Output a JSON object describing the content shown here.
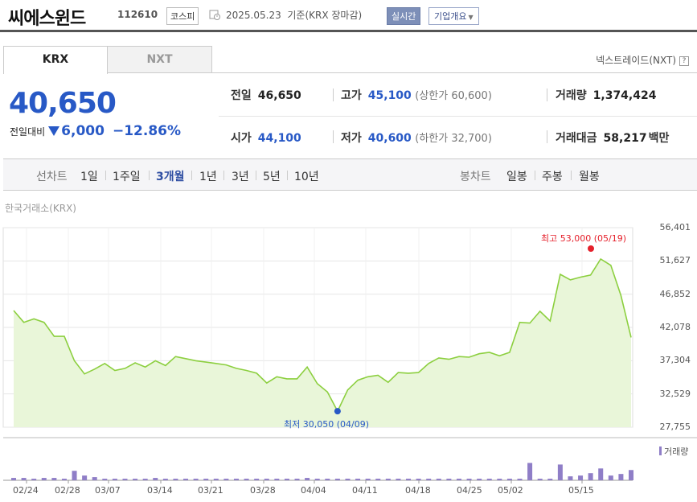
{
  "header": {
    "name": "씨에스윈드",
    "code": "112610",
    "market": "코스피",
    "date": "2025.05.23",
    "basis": "기준(KRX 장마감)",
    "realtime": "실시간",
    "corp_info": "기업개요"
  },
  "tabs": [
    {
      "label": "KRX"
    },
    {
      "label": "NXT"
    }
  ],
  "nxt_link": "넥스트레이드(NXT)",
  "nxt_help": "?",
  "price": {
    "current": "40,650",
    "change_label": "전일대비",
    "change": "6,000",
    "change_pct": "−12.86%"
  },
  "quotes": {
    "prev_close_label": "전일",
    "prev_close": "46,650",
    "high_label": "고가",
    "high": "45,100",
    "upper_limit": "(상한가 60,600)",
    "volume_label": "거래량",
    "volume": "1,374,424",
    "open_label": "시가",
    "open": "44,100",
    "low_label": "저가",
    "low": "40,600",
    "lower_limit": "(하한가 32,700)",
    "amount_label": "거래대금",
    "amount": "58,217",
    "amount_unit": "백만"
  },
  "period_bar": {
    "line_label": "선차트",
    "periods": [
      "1일",
      "1주일",
      "3개월",
      "1년",
      "3년",
      "5년",
      "10년"
    ],
    "selected": "3개월",
    "candle_label": "봉차트",
    "candles": [
      "일봉",
      "주봉",
      "월봉"
    ]
  },
  "chart_source": "한국거래소(KRX)",
  "colors": {
    "accent": "#2859c6",
    "line": "#8ccf3f",
    "fill": "#e9f6d9",
    "volume": "#8f7ec7",
    "max": "#e5202b",
    "min": "#2859c6"
  },
  "chart_data": {
    "type": "area",
    "title": "",
    "ylim": [
      27755,
      56401
    ],
    "yticks": [
      "56,401",
      "51,627",
      "46,852",
      "42,078",
      "37,304",
      "32,529",
      "27,755"
    ],
    "xticks": [
      "02/24",
      "02/28",
      "03/07",
      "03/14",
      "03/21",
      "03/28",
      "04/04",
      "04/11",
      "04/18",
      "04/25",
      "05/02",
      "05/15"
    ],
    "max_label": "최고 53,000 (05/19)",
    "min_label": "최저 30,050 (04/09)",
    "volume_legend": "거래량",
    "series": [
      {
        "values": [
          44500,
          42800,
          43300,
          42800,
          40800,
          40800,
          37300,
          35400,
          36100,
          36900,
          35900,
          36200,
          37000,
          36400,
          37300,
          36600,
          37900,
          37600,
          37300,
          37100,
          36900,
          36700,
          36200,
          35900,
          35500,
          34100,
          35000,
          34700,
          34700,
          36400,
          34000,
          32800,
          30050,
          33100,
          34500,
          35000,
          35200,
          34200,
          35600,
          35500,
          35600,
          36900,
          37700,
          37500,
          37900,
          37800,
          38300,
          38500,
          38000,
          38500,
          42800,
          42700,
          44400,
          43000,
          49700,
          48900,
          49300,
          49600,
          51900,
          51000,
          46650,
          40650
        ],
        "volume_pct": [
          3,
          3,
          2,
          3,
          3,
          2,
          12,
          6,
          4,
          2,
          2,
          2,
          2,
          2,
          3,
          2,
          2,
          2,
          2,
          2,
          2,
          2,
          2,
          2,
          2,
          2,
          2,
          2,
          2,
          3,
          2,
          2,
          2,
          2,
          2,
          2,
          2,
          2,
          2,
          2,
          2,
          2,
          2,
          2,
          2,
          2,
          2,
          2,
          2,
          2,
          2,
          22,
          2,
          2,
          20,
          5,
          6,
          9,
          15,
          6,
          8,
          13
        ]
      }
    ]
  }
}
